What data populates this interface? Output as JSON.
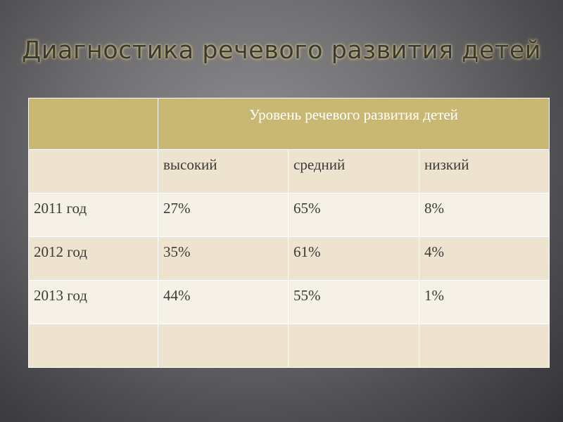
{
  "slide": {
    "title": "Диагностика речевого развития детей"
  },
  "table": {
    "header_caption": "Уровень речевого развития детей",
    "levels": [
      "высокий",
      "средний",
      "низкий"
    ],
    "rows": [
      {
        "year": "2011 год",
        "values": [
          "27%",
          "65%",
          "8%"
        ]
      },
      {
        "year": "2012 год",
        "values": [
          "35%",
          "61%",
          "4%"
        ]
      },
      {
        "year": "2013 год",
        "values": [
          "44%",
          "55%",
          "1%"
        ]
      }
    ]
  },
  "colors": {
    "header": "#c9b873",
    "row_dark": "#ede3cf",
    "row_light": "#f6f1e7"
  }
}
